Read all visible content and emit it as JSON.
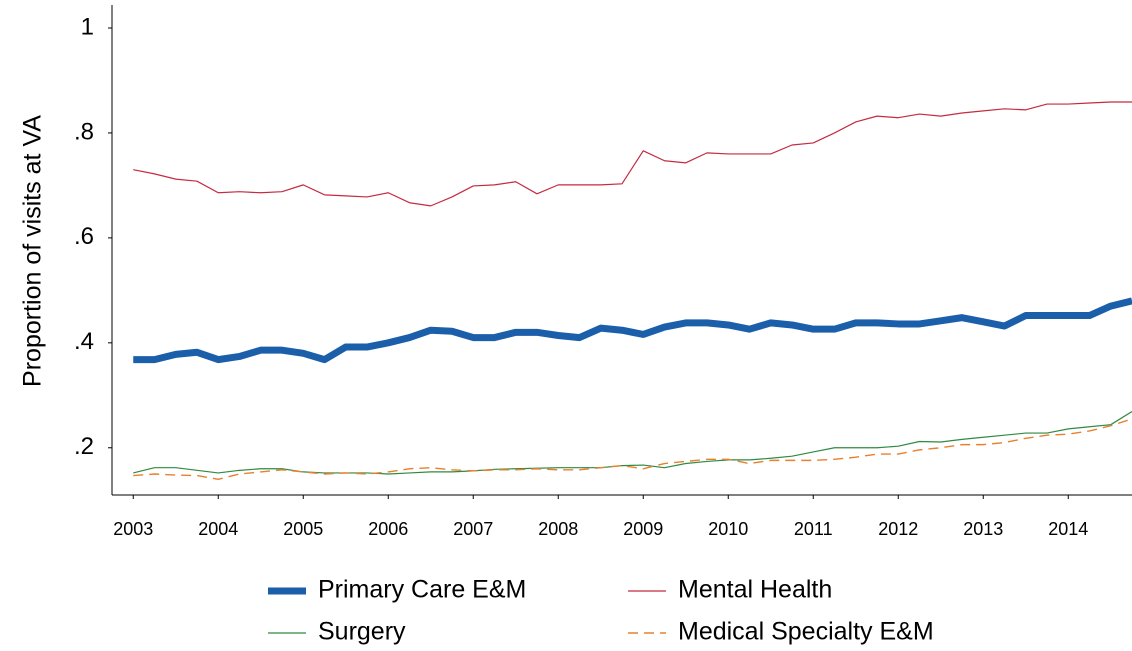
{
  "chart_data": {
    "type": "line",
    "y_label": "Proportion of visits at VA",
    "x": [
      2003,
      2003.25,
      2003.5,
      2003.75,
      2004,
      2004.25,
      2004.5,
      2004.75,
      2005,
      2005.25,
      2005.5,
      2005.75,
      2006,
      2006.25,
      2006.5,
      2006.75,
      2007,
      2007.25,
      2007.5,
      2007.75,
      2008,
      2008.25,
      2008.5,
      2008.75,
      2009,
      2009.25,
      2009.5,
      2009.75,
      2010,
      2010.25,
      2010.5,
      2010.75,
      2011,
      2011.25,
      2011.5,
      2011.75,
      2012,
      2012.25,
      2012.5,
      2012.75,
      2013,
      2013.25,
      2013.5,
      2013.75,
      2014,
      2014.25,
      2014.5,
      2014.75
    ],
    "xlim": [
      2002.75,
      2014.75
    ],
    "xticks": [
      2003,
      2004,
      2005,
      2006,
      2007,
      2008,
      2009,
      2010,
      2011,
      2012,
      2013,
      2014
    ],
    "ylim": [
      0.11,
      1.04
    ],
    "yticks": [
      {
        "value": 0.2,
        "label": ".2"
      },
      {
        "value": 0.4,
        "label": ".4"
      },
      {
        "value": 0.6,
        "label": ".6"
      },
      {
        "value": 0.8,
        "label": ".8"
      },
      1
    ],
    "grid": false,
    "legend": "bottom",
    "series": [
      {
        "name": "Primary Care E&M",
        "color": "#1b5fab",
        "width": 7,
        "dashed": false,
        "values": [
          0.368,
          0.368,
          0.378,
          0.382,
          0.368,
          0.374,
          0.386,
          0.386,
          0.38,
          0.368,
          0.392,
          0.392,
          0.4,
          0.41,
          0.424,
          0.422,
          0.41,
          0.41,
          0.42,
          0.42,
          0.414,
          0.41,
          0.428,
          0.424,
          0.416,
          0.43,
          0.438,
          0.438,
          0.434,
          0.426,
          0.438,
          0.434,
          0.426,
          0.426,
          0.438,
          0.438,
          0.436,
          0.436,
          0.442,
          0.448,
          0.44,
          0.432,
          0.452,
          0.452,
          0.452,
          0.452,
          0.47,
          0.48
        ]
      },
      {
        "name": "Mental Health",
        "color": "#c42b40",
        "width": 1.2,
        "dashed": false,
        "values": [
          0.73,
          0.722,
          0.712,
          0.708,
          0.686,
          0.688,
          0.686,
          0.688,
          0.701,
          0.682,
          0.68,
          0.678,
          0.686,
          0.667,
          0.661,
          0.678,
          0.699,
          0.701,
          0.707,
          0.684,
          0.701,
          0.701,
          0.701,
          0.703,
          0.766,
          0.747,
          0.743,
          0.762,
          0.76,
          0.76,
          0.76,
          0.777,
          0.781,
          0.8,
          0.821,
          0.832,
          0.829,
          0.836,
          0.832,
          0.838,
          0.842,
          0.846,
          0.844,
          0.855,
          0.855,
          0.857,
          0.859,
          0.859
        ]
      },
      {
        "name": "Surgery",
        "color": "#2f8a42",
        "width": 1.2,
        "dashed": false,
        "values": [
          0.152,
          0.162,
          0.162,
          0.157,
          0.152,
          0.157,
          0.16,
          0.16,
          0.154,
          0.152,
          0.152,
          0.152,
          0.15,
          0.152,
          0.154,
          0.154,
          0.156,
          0.159,
          0.16,
          0.161,
          0.162,
          0.162,
          0.162,
          0.166,
          0.167,
          0.162,
          0.17,
          0.174,
          0.177,
          0.177,
          0.18,
          0.184,
          0.192,
          0.2,
          0.2,
          0.2,
          0.203,
          0.212,
          0.211,
          0.216,
          0.22,
          0.224,
          0.228,
          0.228,
          0.236,
          0.24,
          0.244,
          0.269
        ]
      },
      {
        "name": "Medical Specialty E&M",
        "color": "#e8802e",
        "width": 1.4,
        "dashed": true,
        "values": [
          0.147,
          0.15,
          0.148,
          0.147,
          0.14,
          0.15,
          0.154,
          0.158,
          0.154,
          0.15,
          0.152,
          0.15,
          0.154,
          0.16,
          0.162,
          0.158,
          0.156,
          0.158,
          0.158,
          0.16,
          0.158,
          0.158,
          0.162,
          0.166,
          0.16,
          0.17,
          0.174,
          0.178,
          0.178,
          0.17,
          0.176,
          0.176,
          0.176,
          0.178,
          0.182,
          0.188,
          0.188,
          0.196,
          0.2,
          0.206,
          0.206,
          0.21,
          0.218,
          0.224,
          0.226,
          0.232,
          0.242,
          0.255
        ]
      }
    ]
  }
}
